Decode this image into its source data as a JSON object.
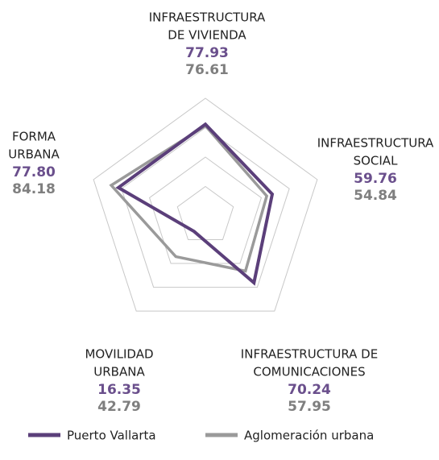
{
  "chart_data": {
    "type": "radar",
    "categories": [
      [
        "INFRAESTRUCTURA",
        "DE VIVIENDA"
      ],
      [
        "INFRAESTRUCTURA",
        "SOCIAL"
      ],
      [
        "INFRAESTRUCTURA DE",
        "COMUNICACIONES"
      ],
      [
        "MOVILIDAD",
        "URBANA"
      ],
      [
        "FORMA",
        "URBANA"
      ]
    ],
    "series": [
      {
        "name": "Puerto Vallarta",
        "color": "#5b3f7a",
        "label_color": "#6a4f8c",
        "values": [
          77.93,
          59.76,
          70.24,
          16.35,
          77.8
        ],
        "value_labels": [
          "77.93",
          "59.76",
          "70.24",
          "16.35",
          "77.80"
        ]
      },
      {
        "name": "Aglomeración urbana",
        "color": "#9a9a9a",
        "label_color": "#7f7f7f",
        "values": [
          76.61,
          54.84,
          57.95,
          42.79,
          84.18
        ],
        "value_labels": [
          "76.61",
          "54.84",
          "57.95",
          "42.79",
          "84.18"
        ]
      }
    ],
    "rlim": [
      0,
      100
    ],
    "rticks": [
      25,
      50,
      75,
      100
    ],
    "grid": true,
    "legend": "bottom"
  }
}
